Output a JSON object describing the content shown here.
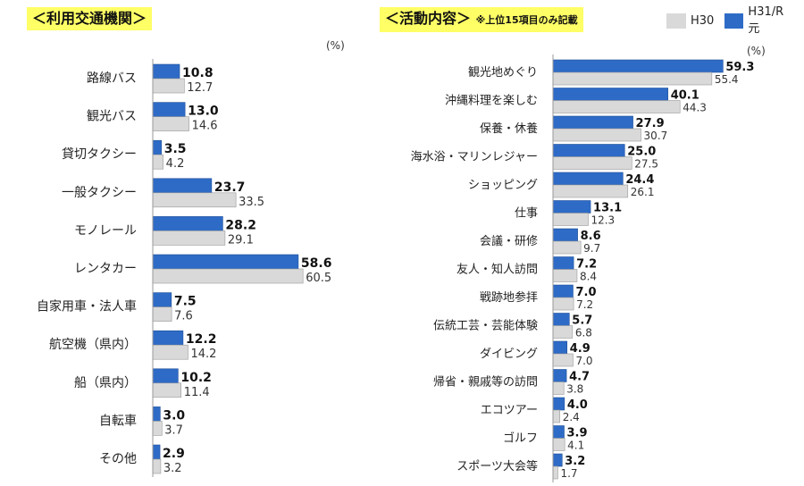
{
  "left_title": "＜利用交通機関＞",
  "right_title": "＜活動内容＞",
  "right_note": "※上位15項目のみ記載",
  "percent_label": "(%)",
  "colors": {
    "h30": "#d9d9d9",
    "r1": "#2e6bc6",
    "title_bg": "#ffff66"
  },
  "chart_data": [
    {
      "type": "bar",
      "orientation": "horizontal",
      "title": "＜利用交通機関＞",
      "unit": "(%)",
      "categories": [
        "路線バス",
        "観光バス",
        "貸切タクシー",
        "一般タクシー",
        "モノレール",
        "レンタカー",
        "自家用車・法人車",
        "航空機（県内）",
        "船（県内）",
        "自転車",
        "その他"
      ],
      "series": [
        {
          "name": "H31/R元",
          "values": [
            10.8,
            13.0,
            3.5,
            23.7,
            28.2,
            58.6,
            7.5,
            12.2,
            10.2,
            3.0,
            2.9
          ]
        },
        {
          "name": "H30",
          "values": [
            12.7,
            14.6,
            4.2,
            33.5,
            29.1,
            60.5,
            7.6,
            14.2,
            11.4,
            3.7,
            3.2
          ]
        }
      ]
    },
    {
      "type": "bar",
      "orientation": "horizontal",
      "title": "＜活動内容＞",
      "subtitle": "※上位15項目のみ記載",
      "unit": "(%)",
      "categories": [
        "観光地めぐり",
        "沖縄料理を楽しむ",
        "保養・休養",
        "海水浴・マリンレジャー",
        "ショッピング",
        "仕事",
        "会議・研修",
        "友人・知人訪問",
        "戦跡地参拝",
        "伝統工芸・芸能体験",
        "ダイビング",
        "帰省・親戚等の訪問",
        "エコツアー",
        "ゴルフ",
        "スポーツ大会等"
      ],
      "series": [
        {
          "name": "H31/R元",
          "values": [
            59.3,
            40.1,
            27.9,
            25.0,
            24.4,
            13.1,
            8.6,
            7.2,
            7.0,
            5.7,
            4.9,
            4.7,
            4.0,
            3.9,
            3.2
          ]
        },
        {
          "name": "H30",
          "values": [
            55.4,
            44.3,
            30.7,
            27.5,
            26.1,
            12.3,
            9.7,
            8.4,
            7.2,
            6.8,
            7.0,
            3.8,
            2.4,
            4.1,
            1.7
          ]
        }
      ]
    }
  ],
  "legend": [
    {
      "name": "H30",
      "color": "#d9d9d9"
    },
    {
      "name": "H31/R元",
      "color": "#2e6bc6"
    }
  ]
}
